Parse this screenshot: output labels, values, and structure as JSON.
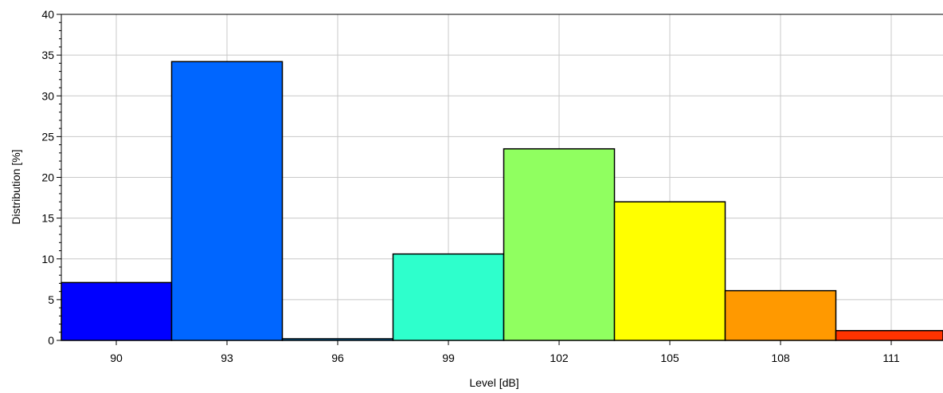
{
  "chart_data": {
    "type": "bar",
    "title": "",
    "xlabel": "Level [dB]",
    "ylabel": "Distribution [%]",
    "x_ticks": [
      "90",
      "93",
      "96",
      "99",
      "102",
      "105",
      "108",
      "111"
    ],
    "y_ticks": [
      "0",
      "5",
      "10",
      "15",
      "20",
      "25",
      "30",
      "35",
      "40"
    ],
    "ylim": [
      0,
      40
    ],
    "grid": true,
    "categories": [
      "90",
      "93",
      "96",
      "99",
      "102",
      "105",
      "108",
      "111"
    ],
    "values": [
      7.1,
      34.2,
      0.2,
      10.6,
      23.5,
      17.0,
      6.1,
      1.2
    ],
    "colors": [
      "#0000ff",
      "#0066ff",
      "#0aa0ff",
      "#2effcc",
      "#90ff60",
      "#ffff00",
      "#ff9900",
      "#ff3300"
    ]
  }
}
